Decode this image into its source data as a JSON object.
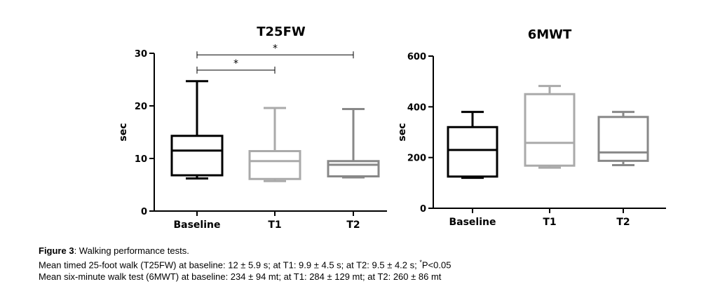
{
  "chart_data": [
    {
      "type": "box",
      "title": "T25FW",
      "ylabel": "sec",
      "xlabel": "",
      "ylim": [
        0,
        30
      ],
      "yticks": [
        0,
        10,
        20,
        30
      ],
      "categories": [
        "Baseline",
        "T1",
        "T2"
      ],
      "colors": [
        "#000000",
        "#aaaaaa",
        "#888888"
      ],
      "boxes": [
        {
          "name": "Baseline",
          "min": 6.2,
          "q1": 6.8,
          "median": 11.5,
          "q3": 14.3,
          "max": 24.7
        },
        {
          "name": "T1",
          "min": 5.7,
          "q1": 6.1,
          "median": 9.5,
          "q3": 11.4,
          "max": 19.6
        },
        {
          "name": "T2",
          "min": 6.4,
          "q1": 6.6,
          "median": 8.8,
          "q3": 9.5,
          "max": 19.4
        }
      ],
      "significance": [
        {
          "from": "Baseline",
          "to": "T2",
          "label": "*",
          "y": 29.7
        },
        {
          "from": "Baseline",
          "to": "T1",
          "label": "*",
          "y": 26.8
        }
      ]
    },
    {
      "type": "box",
      "title": "6MWT",
      "ylabel": "sec",
      "xlabel": "",
      "ylim": [
        0,
        600
      ],
      "yticks": [
        0,
        200,
        400,
        600
      ],
      "categories": [
        "Baseline",
        "T1",
        "T2"
      ],
      "colors": [
        "#000000",
        "#aaaaaa",
        "#888888"
      ],
      "boxes": [
        {
          "name": "Baseline",
          "min": 120,
          "q1": 125,
          "median": 230,
          "q3": 320,
          "max": 380
        },
        {
          "name": "T1",
          "min": 160,
          "q1": 168,
          "median": 258,
          "q3": 450,
          "max": 482
        },
        {
          "name": "T2",
          "min": 170,
          "q1": 187,
          "median": 220,
          "q3": 360,
          "max": 380
        }
      ],
      "significance": []
    }
  ],
  "caption": {
    "figure_label": "Figure 3",
    "title_text": ": Walking performance tests.",
    "line2_main": "Mean timed 25-foot walk (T25FW) at baseline: 12 ± 5.9 s; at T1: 9.9 ± 4.5 s; at T2: 9.5 ± 4.2 s; ",
    "line2_sup": "*",
    "line2_end": "P<0.05",
    "line3": "Mean six-minute walk test (6MWT) at baseline: 234 ± 94 mt; at T1: 284 ± 129 mt; at T2: 260 ± 86 mt"
  }
}
